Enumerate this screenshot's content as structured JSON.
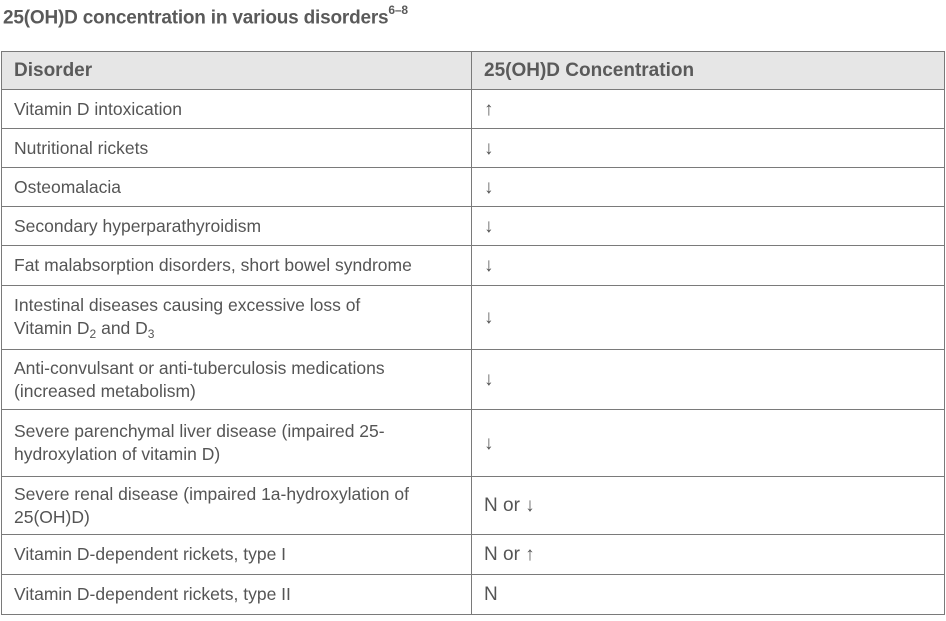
{
  "title": {
    "text": "25(OH)D concentration in various disorders",
    "superscript": "6–8"
  },
  "table": {
    "headers": [
      "Disorder",
      "25(OH)D Concentration"
    ],
    "rows": [
      {
        "disorder": "Vitamin D intoxication",
        "value": "↑"
      },
      {
        "disorder": "Nutritional rickets",
        "value": "↓"
      },
      {
        "disorder": "Osteomalacia",
        "value": "↓"
      },
      {
        "disorder": "Secondary hyperparathyroidism",
        "value": "↓"
      },
      {
        "disorder": "Fat malabsorption disorders, short bowel syndrome",
        "value": "↓"
      },
      {
        "disorder_line1": "Intestinal diseases causing excessive loss of",
        "disorder_line2_a": "Vitamin D",
        "sub_a": "2",
        "disorder_line2_b": " and D",
        "sub_b": "3",
        "value": "↓"
      },
      {
        "disorder_line1": "Anti-convulsant or anti-tuberculosis medications",
        "disorder_line2": "(increased metabolism)",
        "value": "↓"
      },
      {
        "disorder_line1": "Severe parenchymal liver disease (impaired 25-",
        "disorder_line2": "hydroxylation of vitamin D)",
        "value": "↓"
      },
      {
        "disorder_line1": "Severe renal disease (impaired 1a-hydroxylation of",
        "disorder_line2": "25(OH)D)",
        "value": "N or ↓"
      },
      {
        "disorder": "Vitamin D-dependent rickets, type I",
        "value": "N or ↑"
      },
      {
        "disorder": "Vitamin D-dependent rickets, type II",
        "value": "N"
      }
    ]
  }
}
